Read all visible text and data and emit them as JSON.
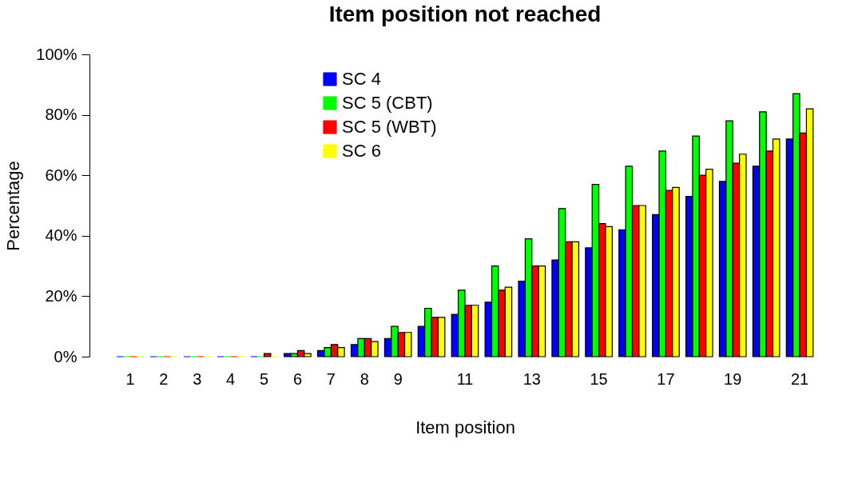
{
  "chart_data": {
    "type": "bar",
    "title": "Item position not reached",
    "xlabel": "Item position",
    "ylabel": "Percentage",
    "categories": [
      "1",
      "2",
      "3",
      "4",
      "5",
      "6",
      "7",
      "8",
      "9",
      null,
      "11",
      null,
      "13",
      null,
      "15",
      null,
      "17",
      null,
      "19",
      null,
      "21"
    ],
    "series": [
      {
        "name": "SC 4",
        "color": "#0000ff",
        "values": [
          0,
          0,
          0,
          0,
          0,
          1,
          2,
          4,
          6,
          10,
          14,
          18,
          25,
          32,
          36,
          42,
          47,
          53,
          58,
          63,
          72
        ]
      },
      {
        "name": "SC 5 (CBT)",
        "color": "#00ff00",
        "values": [
          0,
          0,
          0,
          0,
          0,
          1,
          3,
          6,
          10,
          16,
          22,
          30,
          39,
          49,
          57,
          63,
          68,
          73,
          78,
          81,
          87
        ]
      },
      {
        "name": "SC 5 (WBT)",
        "color": "#ff0000",
        "values": [
          0,
          0,
          0,
          0,
          1,
          2,
          4,
          6,
          8,
          13,
          17,
          22,
          30,
          38,
          44,
          50,
          55,
          60,
          64,
          68,
          74
        ]
      },
      {
        "name": "SC 6",
        "color": "#ffff00",
        "values": [
          0,
          0,
          0,
          0,
          0,
          1,
          3,
          5,
          8,
          13,
          17,
          23,
          30,
          38,
          43,
          50,
          56,
          62,
          67,
          72,
          82
        ]
      }
    ],
    "ylim": [
      0,
      100
    ],
    "yticks": [
      {
        "value": 0,
        "label": "0%"
      },
      {
        "value": 20,
        "label": "20%"
      },
      {
        "value": 40,
        "label": "40%"
      },
      {
        "value": 60,
        "label": "60%"
      },
      {
        "value": 80,
        "label": "80%"
      },
      {
        "value": 100,
        "label": "100%"
      }
    ],
    "grid": false,
    "legend": "top"
  }
}
